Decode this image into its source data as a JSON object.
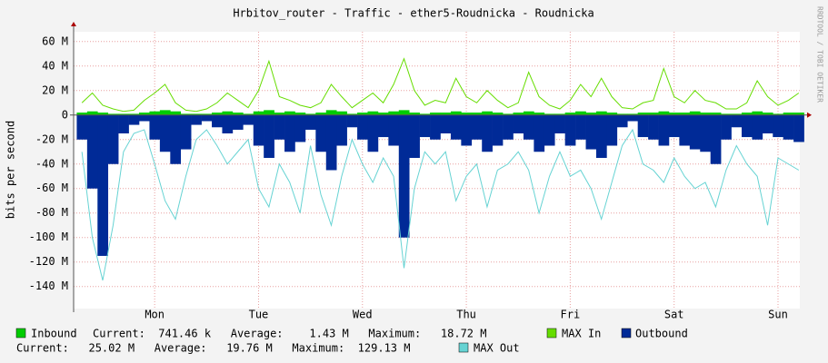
{
  "chart_data": {
    "type": "area",
    "title": "Hrbitov_router - Traffic - ether5-Roudnicka - Roudnicka",
    "y_label": "bits per second",
    "watermark": "RRDTOOL / TOBI OETIKER",
    "xlim": [
      -0.78,
      6.21
    ],
    "xticks": [
      {
        "value": 0,
        "label": "Mon"
      },
      {
        "value": 1,
        "label": "Tue"
      },
      {
        "value": 2,
        "label": "Wed"
      },
      {
        "value": 3,
        "label": "Thu"
      },
      {
        "value": 4,
        "label": "Fri"
      },
      {
        "value": 5,
        "label": "Sat"
      },
      {
        "value": 6,
        "label": "Sun"
      }
    ],
    "ylim": [
      -158,
      68
    ],
    "yticks": [
      {
        "value": -140,
        "label": "-140 M"
      },
      {
        "value": -120,
        "label": "-120 M"
      },
      {
        "value": -100,
        "label": "-100 M"
      },
      {
        "value": -80,
        "label": "-80 M"
      },
      {
        "value": -60,
        "label": "-60 M"
      },
      {
        "value": -40,
        "label": "-40 M"
      },
      {
        "value": -20,
        "label": "-20 M"
      },
      0,
      {
        "value": 20,
        "label": "20 M"
      },
      {
        "value": 40,
        "label": "40 M"
      },
      {
        "value": 60,
        "label": "60 M"
      }
    ],
    "grid": true,
    "x": [
      -0.7,
      -0.6,
      -0.5,
      -0.4,
      -0.3,
      -0.2,
      -0.1,
      0.0,
      0.1,
      0.2,
      0.3,
      0.4,
      0.5,
      0.6,
      0.7,
      0.8,
      0.9,
      1.0,
      1.1,
      1.2,
      1.3,
      1.4,
      1.5,
      1.6,
      1.7,
      1.8,
      1.9,
      2.0,
      2.1,
      2.2,
      2.3,
      2.4,
      2.5,
      2.6,
      2.7,
      2.8,
      2.9,
      3.0,
      3.1,
      3.2,
      3.3,
      3.4,
      3.5,
      3.6,
      3.7,
      3.8,
      3.9,
      4.0,
      4.1,
      4.2,
      4.3,
      4.4,
      4.5,
      4.6,
      4.7,
      4.8,
      4.9,
      5.0,
      5.1,
      5.2,
      5.3,
      5.4,
      5.5,
      5.6,
      5.7,
      5.8,
      5.9,
      6.0,
      6.1,
      6.2
    ],
    "series": [
      {
        "name": "Inbound",
        "color": "#00cc00",
        "style": "area",
        "stats": "Current:  741.46 k   Average:    1.43 M   Maximum:   18.72 M",
        "values": [
          2,
          3,
          2,
          1,
          1,
          1,
          2,
          3,
          4,
          3,
          1,
          1,
          1,
          2,
          3,
          2,
          1,
          3,
          4,
          2,
          3,
          2,
          1,
          2,
          4,
          3,
          1,
          2,
          3,
          2,
          3,
          4,
          2,
          1,
          2,
          2,
          3,
          2,
          2,
          3,
          2,
          1,
          2,
          3,
          2,
          1,
          1,
          2,
          3,
          2,
          3,
          2,
          1,
          1,
          2,
          2,
          3,
          2,
          2,
          3,
          2,
          2,
          1,
          1,
          2,
          3,
          2,
          1,
          2,
          2
        ]
      },
      {
        "name": "MAX In",
        "color": "#66dd00",
        "style": "line",
        "values": [
          10,
          18,
          8,
          5,
          3,
          4,
          12,
          18,
          25,
          10,
          4,
          3,
          5,
          10,
          18,
          12,
          6,
          20,
          44,
          15,
          12,
          8,
          6,
          10,
          25,
          15,
          6,
          12,
          18,
          10,
          25,
          46,
          20,
          8,
          12,
          10,
          30,
          15,
          10,
          20,
          12,
          6,
          10,
          35,
          15,
          8,
          5,
          12,
          25,
          15,
          30,
          15,
          6,
          5,
          10,
          12,
          38,
          15,
          10,
          20,
          12,
          10,
          5,
          5,
          10,
          28,
          15,
          8,
          12,
          18
        ]
      },
      {
        "name": "Outbound",
        "color": "#002a97",
        "style": "area",
        "stats": "Current:   25.02 M   Average:   19.76 M   Maximum:  129.13 M",
        "values": [
          -20,
          -60,
          -115,
          -40,
          -15,
          -8,
          -5,
          -20,
          -30,
          -40,
          -28,
          -8,
          -5,
          -10,
          -15,
          -12,
          -8,
          -25,
          -35,
          -20,
          -30,
          -22,
          -12,
          -30,
          -45,
          -25,
          -10,
          -20,
          -30,
          -18,
          -25,
          -100,
          -35,
          -18,
          -20,
          -15,
          -20,
          -25,
          -20,
          -30,
          -25,
          -20,
          -15,
          -20,
          -30,
          -25,
          -15,
          -25,
          -20,
          -28,
          -35,
          -25,
          -10,
          -5,
          -18,
          -20,
          -25,
          -18,
          -25,
          -28,
          -30,
          -40,
          -20,
          -10,
          -18,
          -20,
          -15,
          -18,
          -20,
          -22
        ]
      },
      {
        "name": "MAX Out",
        "color": "#66d3d3",
        "style": "line",
        "values": [
          -30,
          -100,
          -135,
          -90,
          -30,
          -15,
          -12,
          -40,
          -70,
          -85,
          -50,
          -20,
          -12,
          -25,
          -40,
          -30,
          -20,
          -60,
          -75,
          -40,
          -55,
          -80,
          -25,
          -65,
          -90,
          -50,
          -20,
          -40,
          -55,
          -35,
          -50,
          -125,
          -60,
          -30,
          -40,
          -30,
          -70,
          -50,
          -40,
          -75,
          -45,
          -40,
          -30,
          -45,
          -80,
          -50,
          -30,
          -50,
          -45,
          -60,
          -85,
          -55,
          -25,
          -12,
          -40,
          -45,
          -55,
          -35,
          -50,
          -60,
          -55,
          -75,
          -45,
          -25,
          -40,
          -50,
          -90,
          -35,
          -40,
          -45
        ]
      }
    ]
  }
}
